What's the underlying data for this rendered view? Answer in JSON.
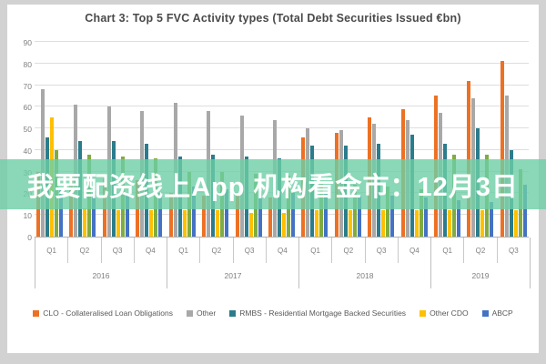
{
  "background": {
    "frame_color": "#D2D2D2",
    "panel_color": "#FFFFFF"
  },
  "watermark": {
    "text": "我要配资线上App 机构看金市：12月3日",
    "band_color": "rgba(109, 206, 165, 0.8)",
    "text_color": "#FFFFFF"
  },
  "chart_data": {
    "type": "bar",
    "title": "Chart 3: Top 5 FVC Activity types (Total Debt Securities Issued €bn)",
    "categories": [
      "Q1",
      "Q2",
      "Q3",
      "Q4",
      "Q1",
      "Q2",
      "Q3",
      "Q4",
      "Q1",
      "Q2",
      "Q3",
      "Q4",
      "Q1",
      "Q2",
      "Q3"
    ],
    "year_groups": [
      {
        "label": "2016",
        "quarters": 4
      },
      {
        "label": "2017",
        "quarters": 4
      },
      {
        "label": "2018",
        "quarters": 4
      },
      {
        "label": "2019",
        "quarters": 3
      }
    ],
    "ylim": [
      0,
      90
    ],
    "yticks": [
      0,
      10,
      20,
      30,
      40,
      50,
      60,
      70,
      80,
      90
    ],
    "grid": true,
    "legend_position": "bottom",
    "series": [
      {
        "name": "CLO - Collateralised Loan Obligations",
        "color": "#ED7124",
        "in_legend": true,
        "values": [
          30,
          28,
          27,
          26,
          20,
          19,
          19,
          18,
          46,
          48,
          55,
          59,
          65,
          72,
          81
        ]
      },
      {
        "name": "Other",
        "color": "#A8A8A8",
        "in_legend": true,
        "values": [
          68,
          61,
          60,
          58,
          62,
          58,
          56,
          54,
          50,
          49,
          52,
          54,
          57,
          64,
          65
        ]
      },
      {
        "name": "RMBS - Residential Mortgage Backed Securities",
        "color": "#2B7C8C",
        "in_legend": true,
        "values": [
          46,
          44,
          44,
          43,
          37,
          38,
          37,
          36,
          42,
          42,
          43,
          47,
          43,
          50,
          40
        ]
      },
      {
        "name": "Other CDO",
        "color": "#FFC000",
        "in_legend": true,
        "values": [
          55,
          13,
          12,
          12,
          12,
          12,
          11,
          11,
          12,
          12,
          12,
          12,
          12,
          12,
          12
        ]
      },
      {
        "name": "",
        "color": "#7FAC41",
        "in_legend": false,
        "values": [
          40,
          38,
          37,
          36,
          30,
          30,
          29,
          28,
          25,
          24,
          23,
          22,
          38,
          38,
          31
        ]
      },
      {
        "name": "ABCP",
        "color": "#4472C4",
        "in_legend": true,
        "values": [
          22,
          21,
          20,
          20,
          23,
          22,
          21,
          20,
          20,
          19,
          19,
          18,
          17,
          16,
          24
        ]
      }
    ]
  }
}
